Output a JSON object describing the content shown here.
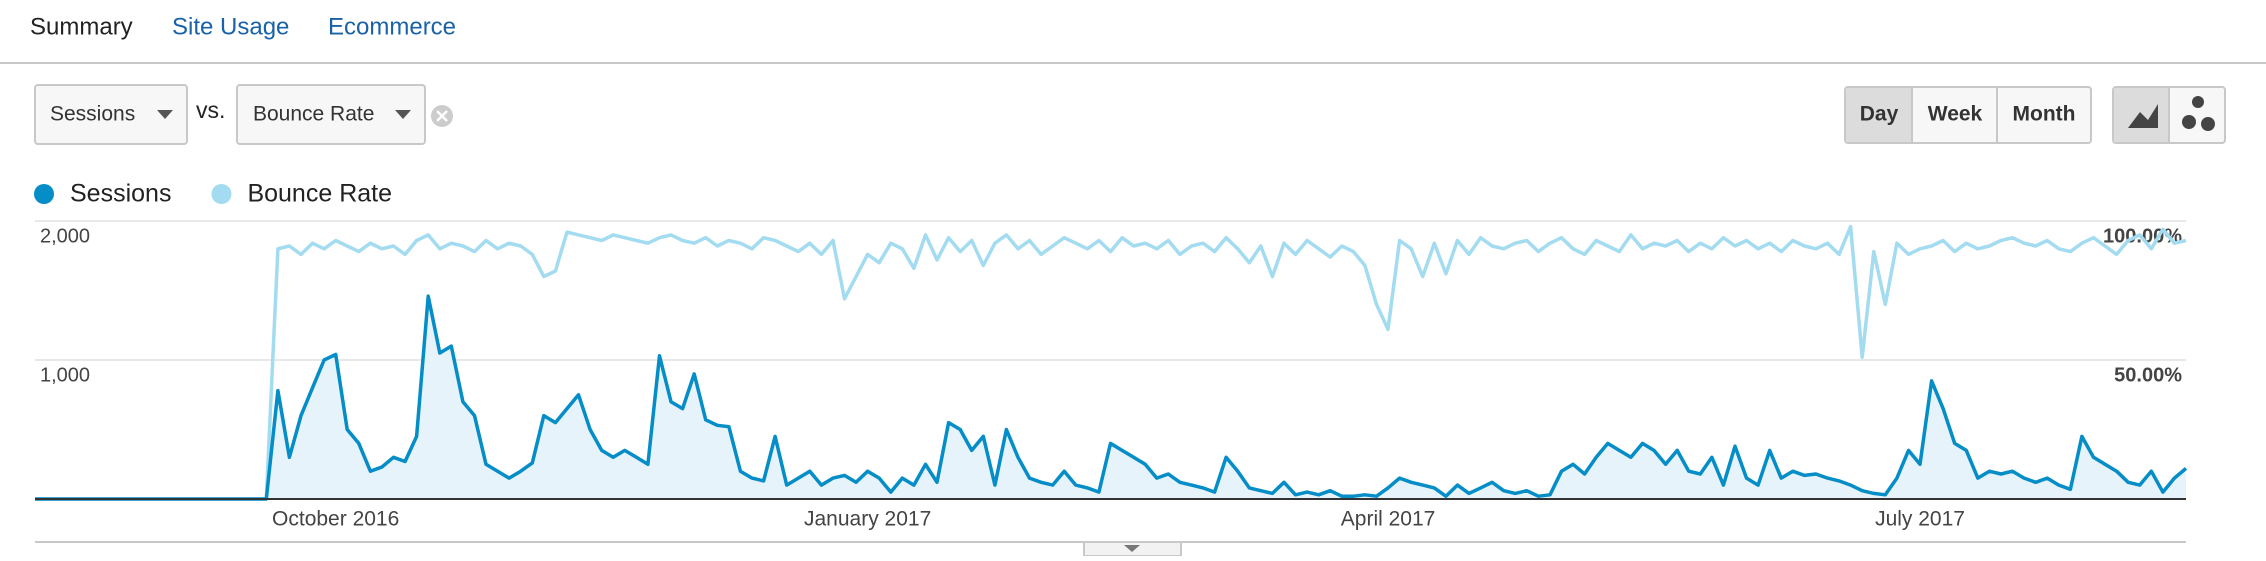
{
  "tabs": [
    "Summary",
    "Site Usage",
    "Ecommerce"
  ],
  "controls": {
    "metric_1": "Sessions",
    "vs": "vs.",
    "metric_2": "Bounce Rate",
    "intervals": [
      "Day",
      "Week",
      "Month"
    ]
  },
  "chart_data": {
    "type": "line",
    "categories": [
      null,
      null,
      null,
      null,
      null,
      null,
      null,
      null,
      null,
      null,
      null,
      null,
      null,
      null,
      null,
      null,
      null,
      null,
      null,
      null,
      null,
      null,
      null,
      null,
      null,
      null,
      "October 2016",
      null,
      null,
      null,
      null,
      null,
      null,
      null,
      null,
      null,
      null,
      null,
      null,
      null,
      null,
      null,
      null,
      null,
      null,
      null,
      null,
      null,
      null,
      null,
      null,
      null,
      null,
      null,
      null,
      null,
      null,
      null,
      null,
      null,
      null,
      null,
      null,
      null,
      null,
      null,
      null,
      null,
      null,
      null,
      null,
      null,
      "January 2017",
      null,
      null,
      null,
      null,
      null,
      null,
      null,
      null,
      null,
      null,
      null,
      null,
      null,
      null,
      null,
      null,
      null,
      null,
      null,
      null,
      null,
      null,
      null,
      null,
      null,
      null,
      null,
      null,
      null,
      null,
      null,
      null,
      null,
      null,
      null,
      null,
      null,
      null,
      null,
      null,
      null,
      null,
      null,
      null,
      "April 2017",
      null,
      null,
      null,
      null,
      null,
      null,
      null,
      null,
      null,
      null,
      null,
      null,
      null,
      null,
      null,
      null,
      null,
      null,
      null,
      null,
      null,
      null,
      null,
      null,
      null,
      null,
      null,
      null,
      null,
      null,
      null,
      null,
      null,
      null,
      null,
      null,
      null,
      null,
      null,
      null,
      null,
      null,
      null,
      null,
      null,
      "July 2017",
      null,
      null,
      null,
      null,
      null,
      null,
      null,
      null,
      null,
      null,
      null,
      null,
      null,
      null,
      null,
      null,
      null,
      null,
      null,
      null,
      null,
      null,
      null
    ],
    "series": [
      {
        "name": "Sessions",
        "color": "#058dc7",
        "fill": "#e6f3fa",
        "values": [
          0,
          0,
          0,
          0,
          0,
          0,
          0,
          0,
          0,
          0,
          0,
          0,
          0,
          0,
          0,
          0,
          0,
          0,
          0,
          0,
          0,
          780,
          300,
          600,
          800,
          1000,
          1040,
          500,
          400,
          200,
          230,
          300,
          270,
          450,
          1460,
          1050,
          1100,
          700,
          600,
          250,
          200,
          150,
          200,
          260,
          600,
          550,
          650,
          750,
          500,
          350,
          300,
          350,
          300,
          250,
          1030,
          700,
          650,
          900,
          570,
          530,
          520,
          200,
          150,
          130,
          450,
          100,
          150,
          200,
          100,
          150,
          170,
          120,
          200,
          150,
          50,
          150,
          100,
          250,
          120,
          550,
          500,
          350,
          450,
          100,
          500,
          300,
          150,
          120,
          100,
          200,
          100,
          80,
          50,
          400,
          350,
          300,
          250,
          150,
          180,
          120,
          100,
          80,
          50,
          300,
          200,
          80,
          60,
          40,
          120,
          30,
          50,
          30,
          60,
          20,
          20,
          30,
          20,
          80,
          150,
          120,
          100,
          80,
          20,
          100,
          40,
          80,
          120,
          60,
          40,
          60,
          20,
          30,
          200,
          250,
          180,
          300,
          400,
          350,
          300,
          400,
          350,
          250,
          350,
          200,
          180,
          300,
          100,
          380,
          150,
          100,
          350,
          150,
          200,
          170,
          180,
          150,
          130,
          100,
          60,
          40,
          30,
          150,
          350,
          250,
          850,
          650,
          400,
          350,
          150,
          200,
          180,
          200,
          150,
          120,
          150,
          100,
          70,
          450,
          300,
          250,
          200,
          120,
          100,
          200,
          50,
          150,
          220
        ]
      },
      {
        "name": "Bounce Rate",
        "color": "#a3dbf0",
        "axis": "y2",
        "values": [
          0,
          0,
          0,
          0,
          0,
          0,
          0,
          0,
          0,
          0,
          0,
          0,
          0,
          0,
          0,
          0,
          0,
          0,
          0,
          0,
          0,
          90,
          91,
          88,
          92,
          90,
          93,
          91,
          89,
          92,
          90,
          91,
          88,
          93,
          95,
          90,
          92,
          91,
          89,
          93,
          90,
          92,
          91,
          88,
          80,
          82,
          96,
          95,
          94,
          93,
          95,
          94,
          93,
          92,
          94,
          95,
          93,
          92,
          94,
          91,
          93,
          92,
          90,
          94,
          93,
          91,
          89,
          92,
          88,
          93,
          72,
          80,
          88,
          85,
          92,
          90,
          83,
          95,
          86,
          94,
          89,
          93,
          84,
          92,
          95,
          90,
          93,
          88,
          91,
          94,
          92,
          90,
          93,
          89,
          94,
          91,
          92,
          90,
          93,
          88,
          91,
          92,
          89,
          94,
          90,
          85,
          91,
          80,
          92,
          88,
          93,
          90,
          87,
          91,
          89,
          84,
          70,
          61,
          93,
          90,
          80,
          92,
          81,
          93,
          88,
          94,
          91,
          90,
          92,
          93,
          89,
          92,
          94,
          90,
          88,
          93,
          91,
          89,
          95,
          90,
          92,
          91,
          93,
          89,
          92,
          90,
          94,
          91,
          93,
          90,
          92,
          89,
          93,
          91,
          90,
          92,
          88,
          98,
          51,
          89,
          70,
          92,
          88,
          90,
          91,
          93,
          89,
          92,
          90,
          91,
          93,
          94,
          92,
          91,
          93,
          90,
          89,
          92,
          94,
          91,
          88,
          93,
          95,
          90,
          97,
          92,
          93
        ]
      }
    ],
    "ylim": [
      0,
      2000
    ],
    "yticks": [
      {
        "value": 2000,
        "label": "2,000"
      },
      {
        "value": 1000,
        "label": "1,000"
      }
    ],
    "y2lim": [
      0,
      100
    ],
    "y2ticks": [
      {
        "value": 100,
        "label": "100.00%"
      },
      {
        "value": 50,
        "label": "50.00%"
      }
    ],
    "grid": true
  }
}
